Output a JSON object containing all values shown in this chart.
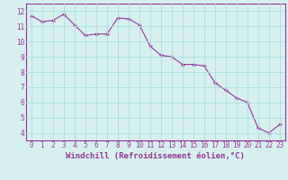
{
  "x": [
    0,
    1,
    2,
    3,
    4,
    5,
    6,
    7,
    8,
    9,
    10,
    11,
    12,
    13,
    14,
    15,
    16,
    17,
    18,
    19,
    20,
    21,
    22,
    23
  ],
  "y": [
    11.7,
    11.3,
    11.4,
    11.8,
    11.1,
    10.4,
    10.5,
    10.5,
    11.55,
    11.5,
    11.1,
    9.7,
    9.1,
    9.0,
    8.5,
    8.5,
    8.4,
    7.3,
    6.8,
    6.3,
    6.0,
    4.3,
    4.0,
    4.55
  ],
  "line_color": "#993399",
  "marker_color": "#993399",
  "bg_color": "#d6f0f0",
  "grid_color": "#aadddd",
  "xlabel": "Windchill (Refroidissement éolien,°C)",
  "xlim": [
    -0.5,
    23.5
  ],
  "ylim": [
    3.5,
    12.5
  ],
  "yticks": [
    4,
    5,
    6,
    7,
    8,
    9,
    10,
    11,
    12
  ],
  "xticks": [
    0,
    1,
    2,
    3,
    4,
    5,
    6,
    7,
    8,
    9,
    10,
    11,
    12,
    13,
    14,
    15,
    16,
    17,
    18,
    19,
    20,
    21,
    22,
    23
  ],
  "tick_fontsize": 5.5,
  "label_fontsize": 6.5
}
